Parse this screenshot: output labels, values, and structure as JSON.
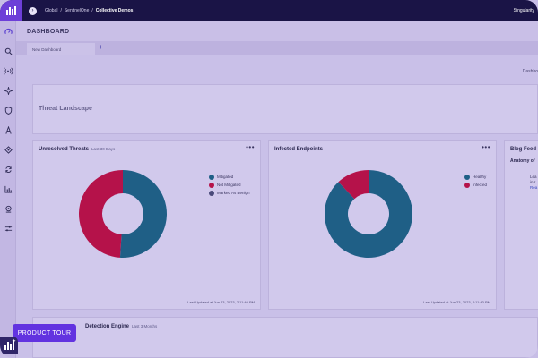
{
  "breadcrumbs": [
    "Global",
    "SentinelOne",
    "Collective Demos"
  ],
  "account": "Singularity",
  "page_title": "DASHBOARD",
  "tabs": [
    {
      "label": "New Dashboard"
    }
  ],
  "add_tab": "+",
  "dashboard_label": "Dashbo",
  "landscape": {
    "title": "Threat Landscape"
  },
  "unresolved": {
    "title": "Unresolved Threats",
    "subtitle": "Last 30 Days",
    "menu": "•••",
    "legend": [
      {
        "label": "Mitigated",
        "color": "#1f5f86"
      },
      {
        "label": "Not Mitigated",
        "color": "#b5124a"
      },
      {
        "label": "Marked As Benign",
        "color": "#4a4a7a"
      }
    ],
    "updated": "Last Updated at Jun 23, 2023, 2:11:40 PM"
  },
  "infected": {
    "title": "Infected Endpoints",
    "menu": "•••",
    "legend": [
      {
        "label": "Healthy",
        "color": "#1f5f86"
      },
      {
        "label": "Infected",
        "color": "#b5124a"
      }
    ],
    "updated": "Last Updated at Jun 23, 2023, 2:11:40 PM"
  },
  "blog": {
    "title": "Blog Feed",
    "article": "Anatomy of",
    "line1": "Lea",
    "line2": "in r",
    "link": "Rea"
  },
  "engine": {
    "title": "Detection Engine",
    "subtitle": "Last 3 Months"
  },
  "product_tour": "PRODUCT TOUR",
  "chart_data": [
    {
      "type": "pie",
      "categories": [
        "Mitigated",
        "Not Mitigated",
        "Marked As Benign"
      ],
      "values": [
        51,
        49,
        0
      ],
      "colors": [
        "#1f5f86",
        "#b5124a",
        "#4a4a7a"
      ]
    },
    {
      "type": "pie",
      "categories": [
        "Healthy",
        "Infected"
      ],
      "values": [
        88,
        12
      ],
      "colors": [
        "#1f5f86",
        "#b5124a"
      ]
    }
  ]
}
